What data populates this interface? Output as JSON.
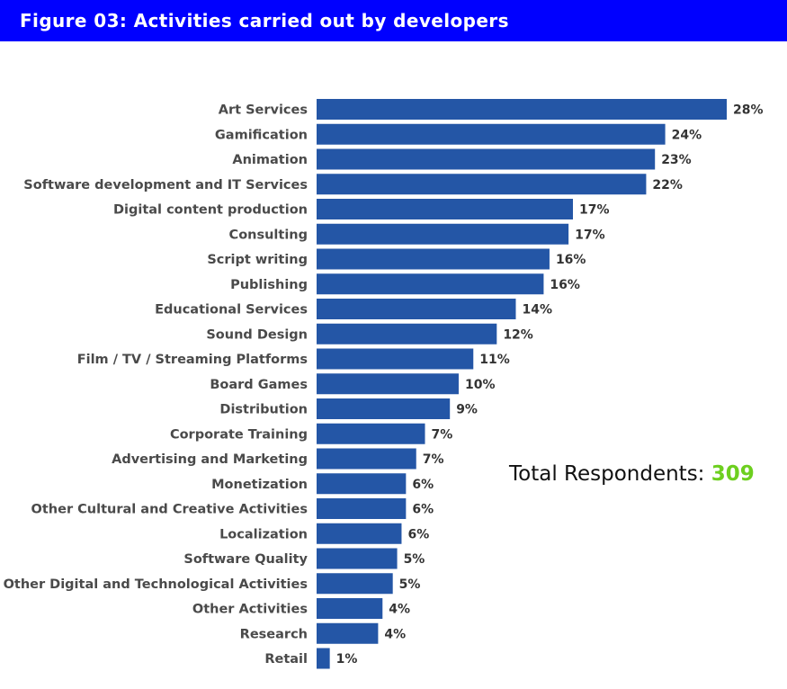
{
  "header": {
    "title": "Figure 03: Activities carried out by developers",
    "background_color": "#0000ff"
  },
  "summary": {
    "label": "Total Respondents:",
    "value": "309",
    "value_color": "#6dcf1f"
  },
  "chart_data": {
    "type": "bar",
    "orientation": "horizontal",
    "title": "Figure 03: Activities carried out by developers",
    "xlabel": "",
    "ylabel": "",
    "unit": "%",
    "bar_color": "#2456a6",
    "grid": false,
    "legend": "none",
    "xlim": [
      0,
      28
    ],
    "categories": [
      "Art Services",
      "Gamification",
      "Animation",
      "Software development and IT Services",
      "Digital content production",
      "Consulting",
      "Script writing",
      "Publishing",
      "Educational Services",
      "Sound Design",
      "Film / TV / Streaming Platforms",
      "Board Games",
      "Distribution",
      "Corporate Training",
      "Advertising and Marketing",
      "Monetization",
      "Other Cultural and Creative Activities",
      "Localization",
      "Software Quality",
      "Other Digital and Technological Activities",
      "Other Activities",
      "Research",
      "Retail"
    ],
    "values": [
      28.0,
      23.8,
      23.1,
      22.5,
      17.5,
      17.2,
      15.9,
      15.5,
      13.6,
      12.3,
      10.7,
      9.7,
      9.1,
      7.4,
      6.8,
      6.1,
      6.1,
      5.8,
      5.5,
      5.2,
      4.5,
      4.2,
      0.9
    ],
    "data_labels": [
      "28%",
      "24%",
      "23%",
      "22%",
      "17%",
      "17%",
      "16%",
      "16%",
      "14%",
      "12%",
      "11%",
      "10%",
      "9%",
      "7%",
      "7%",
      "6%",
      "6%",
      "6%",
      "5%",
      "5%",
      "4%",
      "4%",
      "1%"
    ]
  }
}
